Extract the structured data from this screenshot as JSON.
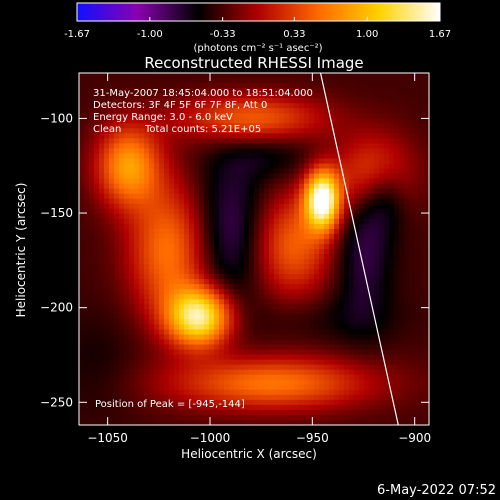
{
  "chart_data": {
    "type": "heatmap",
    "title": "Reconstructed RHESSI Image",
    "xlabel": "Heliocentric X (arcsec)",
    "ylabel": "Heliocentric Y (arcsec)",
    "xlim": [
      -1064,
      -893
    ],
    "ylim": [
      -262,
      -76
    ],
    "x_ticks": [
      -1050,
      -1000,
      -950,
      -900
    ],
    "y_ticks": [
      -100,
      -150,
      -200,
      -250
    ],
    "colorbar": {
      "min": -1.67,
      "max": 1.67,
      "ticks": [
        "-1.67",
        "-1.00",
        "-0.33",
        "0.33",
        "1.00",
        "1.67"
      ],
      "tick_values": [
        -1.67,
        -1.0,
        -0.33,
        0.33,
        1.0,
        1.67
      ],
      "label": "(photons cm⁻² s⁻¹ asec⁻²)",
      "colors": [
        "#1010ff",
        "#8a00b0",
        "#000000",
        "#b00000",
        "#ff6a00",
        "#ffd200",
        "#ffffff"
      ]
    },
    "annotations": [
      "31-May-2007 18:45:04.000 to 18:51:04.000",
      "Detectors: 3F 4F 5F 6F 7F 8F, Att 0",
      "Energy Range: 3.0 - 6.0 keV",
      "Clean",
      "Total counts: 5.21E+05"
    ],
    "peak_label": "Position of Peak = [-945,-144]",
    "peak": {
      "x": -945,
      "y": -144,
      "value": 1.67
    },
    "limb_line": [
      [
        -946,
        -76
      ],
      [
        -908,
        -262
      ]
    ],
    "sources": [
      {
        "x": -945,
        "y": -143,
        "sx": 6,
        "sy": 11,
        "value": 1.67
      },
      {
        "x": -960,
        "y": -167,
        "sx": 14,
        "sy": 20,
        "value": 0.5
      },
      {
        "x": -1005,
        "y": -205,
        "sx": 11,
        "sy": 11,
        "value": 1.4
      },
      {
        "x": -1020,
        "y": -170,
        "sx": 14,
        "sy": 25,
        "value": 0.6
      },
      {
        "x": -1040,
        "y": -125,
        "sx": 11,
        "sy": 15,
        "value": 0.8
      },
      {
        "x": -980,
        "y": -100,
        "sx": 25,
        "sy": 9,
        "value": 0.5
      },
      {
        "x": -970,
        "y": -240,
        "sx": 35,
        "sy": 10,
        "value": 0.6
      },
      {
        "x": -920,
        "y": -130,
        "sx": 13,
        "sy": 15,
        "value": 0.55
      },
      {
        "x": -990,
        "y": -160,
        "sx": 13,
        "sy": 28,
        "value": -0.9
      },
      {
        "x": -925,
        "y": -170,
        "sx": 10,
        "sy": 28,
        "value": -0.8
      },
      {
        "x": -915,
        "y": -140,
        "sx": 8,
        "sy": 13,
        "value": -0.9
      },
      {
        "x": -970,
        "y": -120,
        "sx": 15,
        "sy": 9,
        "value": -0.6
      },
      {
        "x": -945,
        "y": -205,
        "sx": 25,
        "sy": 9,
        "value": -0.5
      },
      {
        "x": -1055,
        "y": -230,
        "sx": 15,
        "sy": 20,
        "value": -0.5
      }
    ]
  },
  "footer": {
    "date": "6-May-2022 07:52"
  }
}
